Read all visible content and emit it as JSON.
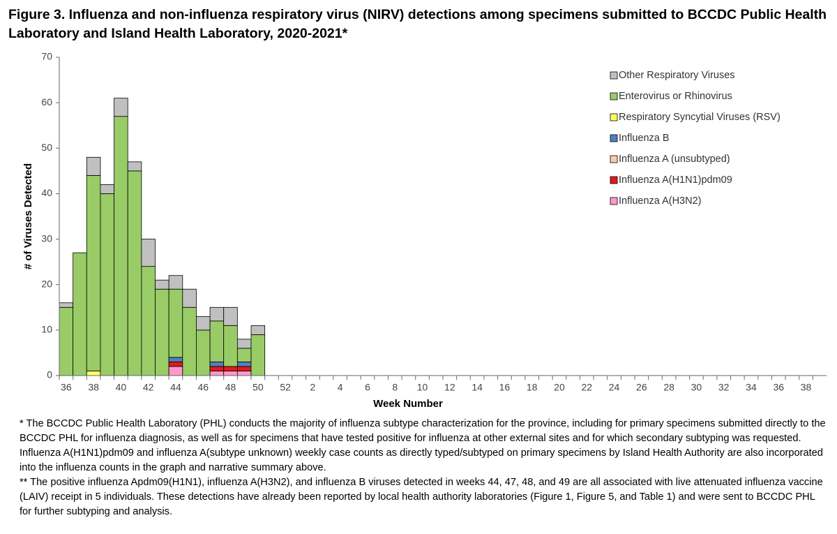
{
  "chart_data": {
    "type": "bar",
    "stacked": true,
    "title": "Figure 3. Influenza and non-influenza respiratory virus (NIRV) detections among specimens submitted to BCCDC Public Health Laboratory and Island Health Laboratory, 2020-2021*",
    "x_label": "Week Number",
    "y_label": "# of Viruses Detected",
    "categories": [
      "36",
      null,
      "38",
      null,
      "40",
      null,
      "42",
      null,
      "44",
      null,
      "46",
      null,
      "48",
      null,
      "50",
      null,
      "52",
      null,
      "2",
      null,
      "4",
      null,
      "6",
      null,
      "8",
      null,
      "10",
      null,
      "12",
      null,
      "14",
      null,
      "16",
      null,
      "18",
      null,
      "20",
      null,
      "22",
      null,
      "24",
      null,
      "26",
      null,
      "28",
      null,
      "30",
      null,
      "32",
      null,
      "34",
      null,
      "36",
      null,
      "38",
      null
    ],
    "ylim": [
      0,
      70
    ],
    "yticks": [
      0,
      10,
      20,
      30,
      40,
      50,
      60,
      70
    ],
    "grid": false,
    "legend": "upper right",
    "series": [
      {
        "name": "Influenza A(H3N2)",
        "color": "#ff99cc",
        "values": [
          0,
          0,
          0,
          0,
          0,
          0,
          0,
          0,
          2,
          0,
          0,
          1,
          1,
          1,
          0,
          null,
          null,
          null,
          null,
          null,
          null,
          null,
          null,
          null,
          null,
          null,
          null,
          null,
          null,
          null,
          null,
          null,
          null,
          null,
          null,
          null,
          null,
          null,
          null,
          null,
          null,
          null,
          null,
          null,
          null,
          null,
          null,
          null,
          null,
          null,
          null,
          null,
          null,
          null,
          null,
          null
        ]
      },
      {
        "name": "Influenza A(H1N1)pdm09",
        "color": "#e31a1c",
        "values": [
          0,
          0,
          0,
          0,
          0,
          0,
          0,
          0,
          1,
          0,
          0,
          1,
          1,
          1,
          0,
          null,
          null,
          null,
          null,
          null,
          null,
          null,
          null,
          null,
          null,
          null,
          null,
          null,
          null,
          null,
          null,
          null,
          null,
          null,
          null,
          null,
          null,
          null,
          null,
          null,
          null,
          null,
          null,
          null,
          null,
          null,
          null,
          null,
          null,
          null,
          null,
          null,
          null,
          null,
          null,
          null
        ]
      },
      {
        "name": "Influenza A (unsubtyped)",
        "color": "#f8cbad",
        "values": [
          0,
          0,
          0,
          0,
          0,
          0,
          0,
          0,
          0,
          0,
          0,
          0,
          0,
          0,
          0,
          null,
          null,
          null,
          null,
          null,
          null,
          null,
          null,
          null,
          null,
          null,
          null,
          null,
          null,
          null,
          null,
          null,
          null,
          null,
          null,
          null,
          null,
          null,
          null,
          null,
          null,
          null,
          null,
          null,
          null,
          null,
          null,
          null,
          null,
          null,
          null,
          null,
          null,
          null,
          null,
          null
        ]
      },
      {
        "name": "Influenza B",
        "color": "#4f81bd",
        "values": [
          0,
          0,
          0,
          0,
          0,
          0,
          0,
          0,
          1,
          0,
          0,
          1,
          0,
          1,
          0,
          null,
          null,
          null,
          null,
          null,
          null,
          null,
          null,
          null,
          null,
          null,
          null,
          null,
          null,
          null,
          null,
          null,
          null,
          null,
          null,
          null,
          null,
          null,
          null,
          null,
          null,
          null,
          null,
          null,
          null,
          null,
          null,
          null,
          null,
          null,
          null,
          null,
          null,
          null,
          null,
          null
        ]
      },
      {
        "name": "Respiratory Syncytial Viruses (RSV)",
        "color": "#ffff66",
        "values": [
          0,
          0,
          1,
          0,
          0,
          0,
          0,
          0,
          0,
          0,
          0,
          0,
          0,
          0,
          0,
          null,
          null,
          null,
          null,
          null,
          null,
          null,
          null,
          null,
          null,
          null,
          null,
          null,
          null,
          null,
          null,
          null,
          null,
          null,
          null,
          null,
          null,
          null,
          null,
          null,
          null,
          null,
          null,
          null,
          null,
          null,
          null,
          null,
          null,
          null,
          null,
          null,
          null,
          null,
          null,
          null
        ]
      },
      {
        "name": "Enterovirus or Rhinovirus",
        "color": "#99cc66",
        "values": [
          15,
          27,
          43,
          40,
          57,
          45,
          24,
          19,
          15,
          15,
          10,
          9,
          9,
          3,
          9,
          null,
          null,
          null,
          null,
          null,
          null,
          null,
          null,
          null,
          null,
          null,
          null,
          null,
          null,
          null,
          null,
          null,
          null,
          null,
          null,
          null,
          null,
          null,
          null,
          null,
          null,
          null,
          null,
          null,
          null,
          null,
          null,
          null,
          null,
          null,
          null,
          null,
          null,
          null,
          null,
          null
        ]
      },
      {
        "name": "Other Respiratory Viruses",
        "color": "#c0c0c0",
        "values": [
          1,
          0,
          4,
          2,
          4,
          2,
          6,
          2,
          3,
          4,
          3,
          3,
          4,
          2,
          2,
          null,
          null,
          null,
          null,
          null,
          null,
          null,
          null,
          null,
          null,
          null,
          null,
          null,
          null,
          null,
          null,
          null,
          null,
          null,
          null,
          null,
          null,
          null,
          null,
          null,
          null,
          null,
          null,
          null,
          null,
          null,
          null,
          null,
          null,
          null,
          null,
          null,
          null,
          null,
          null,
          null
        ]
      }
    ],
    "notes": [
      "* The BCCDC Public Health Laboratory (PHL) conducts the majority of influenza subtype characterization for the province, including for primary specimens submitted directly to the BCCDC PHL for influenza diagnosis, as well as for specimens that have tested positive for influenza at other external sites and for which secondary subtyping was requested. Influenza A(H1N1)pdm09 and influenza A(subtype unknown) weekly case counts as directly typed/subtyped on primary specimens by Island Health Authority are also incorporated into the influenza counts in the graph and narrative summary above.",
      "** The positive influenza Apdm09(H1N1), influenza A(H3N2), and influenza B viruses detected in weeks 44, 47, 48, and 49 are all associated with live attenuated influenza vaccine (LAIV) receipt in 5 individuals. These detections have already been reported by local health authority laboratories (Figure 1, Figure 5, and Table 1) and were sent to BCCDC PHL for further subtyping and analysis."
    ]
  }
}
